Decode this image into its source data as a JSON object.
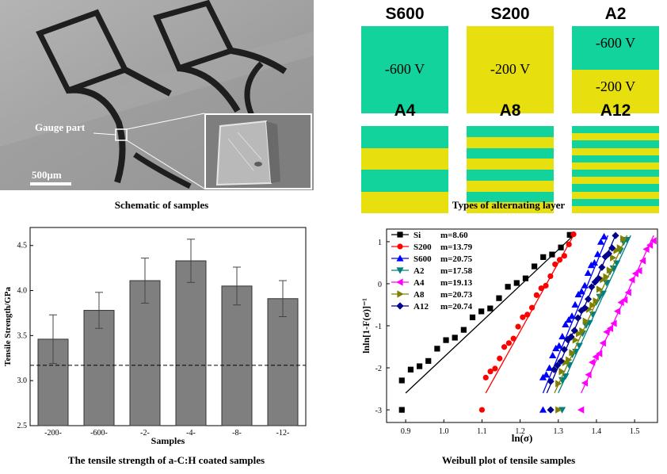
{
  "panel1": {
    "gauge_label": "Gauge part",
    "scale_label": "500μm",
    "caption": "Schematic of samples"
  },
  "panel2": {
    "caption": "Types of alternating layer",
    "colors": {
      "green": "#12d39c",
      "yellow": "#e8e00e"
    },
    "samples": [
      {
        "name": "S600",
        "label_top": "-600 V",
        "label_bottom": "",
        "stripes": [
          "green"
        ]
      },
      {
        "name": "S200",
        "label_top": "-200 V",
        "label_bottom": "",
        "stripes": [
          "yellow"
        ]
      },
      {
        "name": "A2",
        "label_top": "-600 V",
        "label_bottom": "-200 V",
        "stripes": [
          "green",
          "yellow"
        ]
      },
      {
        "name": "A4",
        "label_top": "",
        "label_bottom": "",
        "stripes": [
          "green",
          "yellow",
          "green",
          "yellow"
        ]
      },
      {
        "name": "A8",
        "label_top": "",
        "label_bottom": "",
        "stripes": [
          "green",
          "yellow",
          "green",
          "yellow",
          "green",
          "yellow",
          "green",
          "yellow"
        ]
      },
      {
        "name": "A12",
        "label_top": "",
        "label_bottom": "",
        "stripes": [
          "green",
          "yellow",
          "green",
          "yellow",
          "green",
          "yellow",
          "green",
          "yellow",
          "green",
          "yellow",
          "green",
          "yellow"
        ]
      }
    ]
  },
  "panel3": {
    "caption": "The tensile strength of a-C:H coated samples"
  },
  "panel4": {
    "caption": "Weibull plot of tensile samples"
  },
  "chart_data": [
    {
      "type": "bar",
      "ylabel": "Tensile Strength/GPa",
      "xlabel": "Samples",
      "categories": [
        "-200-",
        "-600-",
        "-2-",
        "-4-",
        "-8-",
        "-12-"
      ],
      "values": [
        3.46,
        3.78,
        4.11,
        4.33,
        4.05,
        3.91
      ],
      "errors": [
        0.27,
        0.2,
        0.25,
        0.24,
        0.21,
        0.2
      ],
      "ylim": [
        2.5,
        4.7
      ],
      "yticks": [
        "2.5",
        "3.0",
        "3.5",
        "4.0",
        "4.5"
      ],
      "reference_line": 3.17,
      "bar_color": "#7f7f7f"
    },
    {
      "type": "scatter",
      "xlabel": "ln(σ)",
      "ylabel": "lnln[1-F(σ)]⁻¹",
      "xlim": [
        0.85,
        1.56
      ],
      "ylim": [
        -3.3,
        1.3
      ],
      "xticks": [
        "0.9",
        "1.0",
        "1.1",
        "1.2",
        "1.3",
        "1.4",
        "1.5"
      ],
      "yticks": [
        "1",
        "0",
        "-1",
        "-2",
        "-3"
      ],
      "series": [
        {
          "name": "Si",
          "m": "m=8.60",
          "color": "#000000",
          "marker": "square",
          "x0": 0.89,
          "x1": 1.33,
          "fit": [
            0.9,
            1.34
          ],
          "outlier": 0.89
        },
        {
          "name": "S200",
          "m": "m=13.79",
          "color": "#ff0000",
          "marker": "circle",
          "x0": 1.11,
          "x1": 1.34,
          "fit": [
            1.11,
            1.34
          ],
          "outlier": 1.1
        },
        {
          "name": "S600",
          "m": "m=20.75",
          "color": "#0000ff",
          "marker": "triangle-up",
          "x0": 1.26,
          "x1": 1.42,
          "fit": [
            1.26,
            1.43
          ],
          "outlier": 1.26
        },
        {
          "name": "A2",
          "m": "m=17.58",
          "color": "#008080",
          "marker": "triangle-down",
          "x0": 1.31,
          "x1": 1.48,
          "fit": [
            1.3,
            1.49
          ],
          "outlier": 1.31
        },
        {
          "name": "A4",
          "m": "m=19.13",
          "color": "#ff00ff",
          "marker": "triangle-left",
          "x0": 1.37,
          "x1": 1.55,
          "fit": [
            1.36,
            1.55
          ],
          "outlier": 1.36
        },
        {
          "name": "A8",
          "m": "m=20.73",
          "color": "#808000",
          "marker": "triangle-right",
          "x0": 1.3,
          "x1": 1.47,
          "fit": [
            1.29,
            1.48
          ],
          "outlier": 1.3
        },
        {
          "name": "A12",
          "m": "m=20.74",
          "color": "#00008b",
          "marker": "diamond",
          "x0": 1.28,
          "x1": 1.45,
          "fit": [
            1.27,
            1.45
          ],
          "outlier": 1.28
        }
      ]
    }
  ]
}
